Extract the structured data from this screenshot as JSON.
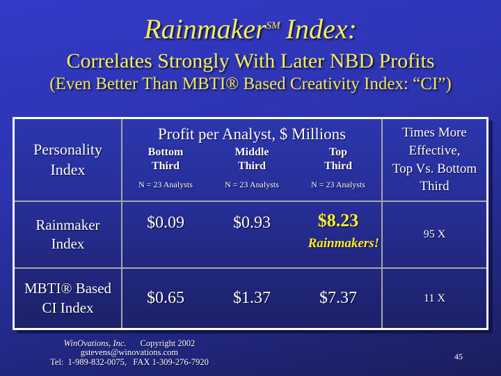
{
  "colors": {
    "background_top": "#3439C8",
    "background_bottom": "#1A1E5C",
    "title_yellow": "#F2EE58",
    "table_accent_yellow": "#FFEE2E",
    "text_white": "#FFFFFF",
    "gridline_gray": "#A8A8A8",
    "table_border_white": "#FFFFFF"
  },
  "title": {
    "word": "Rainmaker",
    "mark": "SM",
    "rest": "Index:"
  },
  "subtitle": "Correlates Strongly With Later NBD Profits",
  "subtitle2": "(Even Better Than MBTI® Based Creativity Index: “CI”)",
  "table": {
    "row_header_label": "Personality Index",
    "profit_group_title": "Profit per Analyst, $ Millions",
    "subcolumns": [
      {
        "label": "Bottom Third",
        "sample": "N = 23 Analysts"
      },
      {
        "label": "Middle Third",
        "sample": "N = 23 Analysts"
      },
      {
        "label": "Top Third",
        "sample": "N = 23 Analysts"
      }
    ],
    "times_more_lines": [
      "Times More",
      "Effective,",
      "Top Vs. Bottom",
      "Third"
    ],
    "rows": [
      {
        "label": "Rainmaker Index",
        "bottom": "$0.09",
        "middle": "$0.93",
        "top": "$8.23",
        "top_note": "Rainmakers!",
        "times": "95 X"
      },
      {
        "label": "MBTI® Based CI Index",
        "bottom": "$0.65",
        "middle": "$1.37",
        "top": "$7.37",
        "top_note": "",
        "times": "11 X"
      }
    ]
  },
  "chart_data": {
    "type": "table",
    "title": "Rainmaker Index: Correlates Strongly With Later NBD Profits",
    "columns": [
      "Personality Index",
      "Bottom Third (N = 23 Analysts)",
      "Middle Third (N = 23 Analysts)",
      "Top Third (N = 23 Analysts)",
      "Times More Effective, Top Vs. Bottom Third"
    ],
    "rows": [
      [
        "Rainmaker Index",
        0.09,
        0.93,
        8.23,
        "95 X"
      ],
      [
        "MBTI® Based CI Index",
        0.65,
        1.37,
        7.37,
        "11 X"
      ]
    ],
    "units": "Profit per Analyst, $ Millions"
  },
  "footer": {
    "company": "WinOvations, Inc.",
    "copyright": "Copyright 2002",
    "email": "gstevens@winovations.com",
    "phone": "Tel:  1-989-832-0075,   FAX 1-309-276-7920",
    "page_number": "45"
  }
}
